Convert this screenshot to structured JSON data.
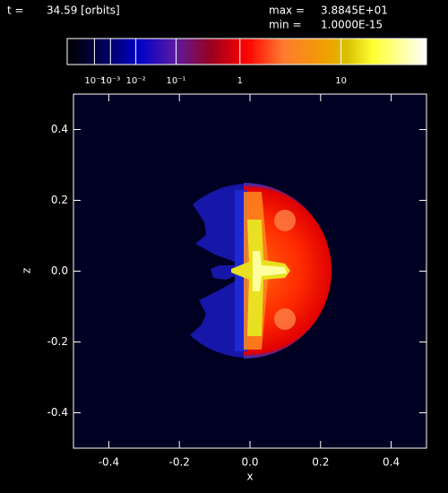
{
  "chart_data": {
    "type": "image",
    "time_label": "t =",
    "time": "34.59 [orbits]",
    "max_label": "max =",
    "min_label": "min =",
    "colorbar": {
      "max": {
        "value": 38.845,
        "label": "3.8845E+01"
      },
      "min": {
        "value": 1e-15,
        "label": "1.0000E-15"
      },
      "scale_power": 0.2,
      "ticks": [
        {
          "value": 0.0001,
          "label": "10⁻⁴"
        },
        {
          "value": 0.001,
          "label": "10⁻³"
        },
        {
          "value": 0.01,
          "label": "10⁻²"
        },
        {
          "value": 0.1,
          "label": "10⁻¹"
        },
        1,
        10
      ]
    },
    "xlabel": "x",
    "ylabel": "z",
    "xlim": [
      -0.5,
      0.5
    ],
    "ylim": [
      -0.5,
      0.5
    ],
    "xticks": [
      -0.4,
      -0.2,
      {
        "value": 0,
        "label": "0.0"
      },
      0.2,
      0.4
    ],
    "yticks": [
      -0.4,
      -0.2,
      {
        "value": 0,
        "label": "0.0"
      },
      0.2,
      0.4
    ]
  }
}
